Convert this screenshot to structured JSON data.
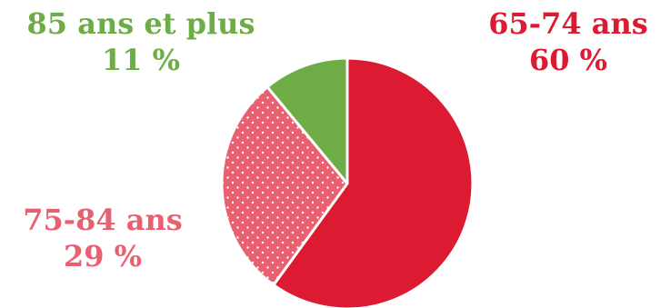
{
  "chart_data": {
    "type": "pie",
    "title": "",
    "slices": [
      {
        "label": "65-74 ans",
        "value": 60,
        "value_text": "60 %",
        "color": "#dc1a31",
        "pattern": "solid"
      },
      {
        "label": "75-84 ans",
        "value": 29,
        "value_text": "29 %",
        "color": "#e96070",
        "pattern": "dots"
      },
      {
        "label": "85 ans et plus",
        "value": 11,
        "value_text": "11 %",
        "color": "#6ead46",
        "pattern": "solid"
      }
    ],
    "start_angle": "12 o'clock",
    "direction": "clockwise",
    "legend": "none",
    "labels_placement": "outside"
  }
}
